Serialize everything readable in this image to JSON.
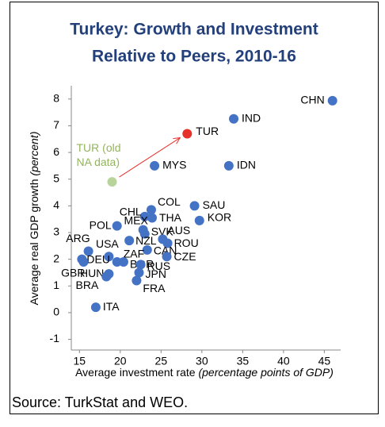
{
  "chart_data": {
    "type": "scatter",
    "title": [
      "Turkey: Growth and Investment",
      "Relative to Peers, 2010-16"
    ],
    "x_label": "Average investment rate ",
    "x_label_unit": "(percentage points of GDP)",
    "y_label": "Average real GDP growth ",
    "y_label_unit": "(percent)",
    "source": "Source: TurkStat and WEO.",
    "xlim": [
      14,
      47
    ],
    "xticks": [
      15,
      20,
      25,
      30,
      35,
      40,
      45
    ],
    "ylim": [
      -1.4,
      8.5
    ],
    "yticks": [
      -1,
      0,
      1,
      2,
      3,
      4,
      5,
      6,
      7,
      8
    ],
    "points": [
      {
        "label": "CHN",
        "x": 46.0,
        "y": 7.94,
        "color": "#4472c4"
      },
      {
        "label": "IND",
        "x": 33.9,
        "y": 7.26,
        "color": "#4472c4"
      },
      {
        "label": "TUR",
        "x": 28.2,
        "y": 6.7,
        "color": "#e8302a"
      },
      {
        "label": "TUR (old NA data)",
        "x": 19.0,
        "y": 4.9,
        "color": "#b8d49a"
      },
      {
        "label": "MYS",
        "x": 24.2,
        "y": 5.5,
        "color": "#4472c4"
      },
      {
        "label": "IDN",
        "x": 33.3,
        "y": 5.5,
        "color": "#4472c4"
      },
      {
        "label": "SAU",
        "x": 29.1,
        "y": 4.0,
        "color": "#4472c4"
      },
      {
        "label": "KOR",
        "x": 29.7,
        "y": 3.45,
        "color": "#4472c4"
      },
      {
        "label": "COL",
        "x": 23.8,
        "y": 3.85,
        "color": "#4472c4"
      },
      {
        "label": "CHL",
        "x": 23.0,
        "y": 3.6,
        "color": "#4472c4"
      },
      {
        "label": "THA",
        "x": 23.9,
        "y": 3.55,
        "color": "#4472c4"
      },
      {
        "label": "POL",
        "x": 19.6,
        "y": 3.25,
        "color": "#4472c4"
      },
      {
        "label": "MEX",
        "x": 22.8,
        "y": 3.1,
        "color": "#4472c4"
      },
      {
        "label": "SVK",
        "x": 23.0,
        "y": 2.95,
        "color": "#4472c4"
      },
      {
        "label": "AUS",
        "x": 25.2,
        "y": 2.75,
        "color": "#4472c4"
      },
      {
        "label": "ROU",
        "x": 25.8,
        "y": 2.6,
        "color": "#4472c4"
      },
      {
        "label": "NZL",
        "x": 21.1,
        "y": 2.7,
        "color": "#4472c4"
      },
      {
        "label": "CAN",
        "x": 23.3,
        "y": 2.35,
        "color": "#4472c4"
      },
      {
        "label": "CZE",
        "x": 25.7,
        "y": 2.1,
        "color": "#4472c4"
      },
      {
        "label": "ARG",
        "x": 16.1,
        "y": 2.3,
        "color": "#4472c4"
      },
      {
        "label": "USA",
        "x": 18.6,
        "y": 2.1,
        "color": "#4472c4"
      },
      {
        "label": "ZAF",
        "x": 19.6,
        "y": 1.9,
        "color": "#4472c4"
      },
      {
        "label": "DEU",
        "x": 15.3,
        "y": 2.0,
        "color": "#4472c4"
      },
      {
        "label": "GBR",
        "x": 15.5,
        "y": 1.9,
        "color": "#4472c4"
      },
      {
        "label": "BGR",
        "x": 20.4,
        "y": 1.9,
        "color": "#4472c4"
      },
      {
        "label": "RUS",
        "x": 22.5,
        "y": 1.8,
        "color": "#4472c4"
      },
      {
        "label": "HUN",
        "x": 18.6,
        "y": 1.45,
        "color": "#4472c4"
      },
      {
        "label": "BRA",
        "x": 18.3,
        "y": 1.35,
        "color": "#4472c4"
      },
      {
        "label": "JPN",
        "x": 22.3,
        "y": 1.5,
        "color": "#4472c4"
      },
      {
        "label": "FRA",
        "x": 22.0,
        "y": 1.2,
        "color": "#4472c4"
      },
      {
        "label": "ITA",
        "x": 17.0,
        "y": 0.2,
        "color": "#4472c4"
      }
    ]
  }
}
